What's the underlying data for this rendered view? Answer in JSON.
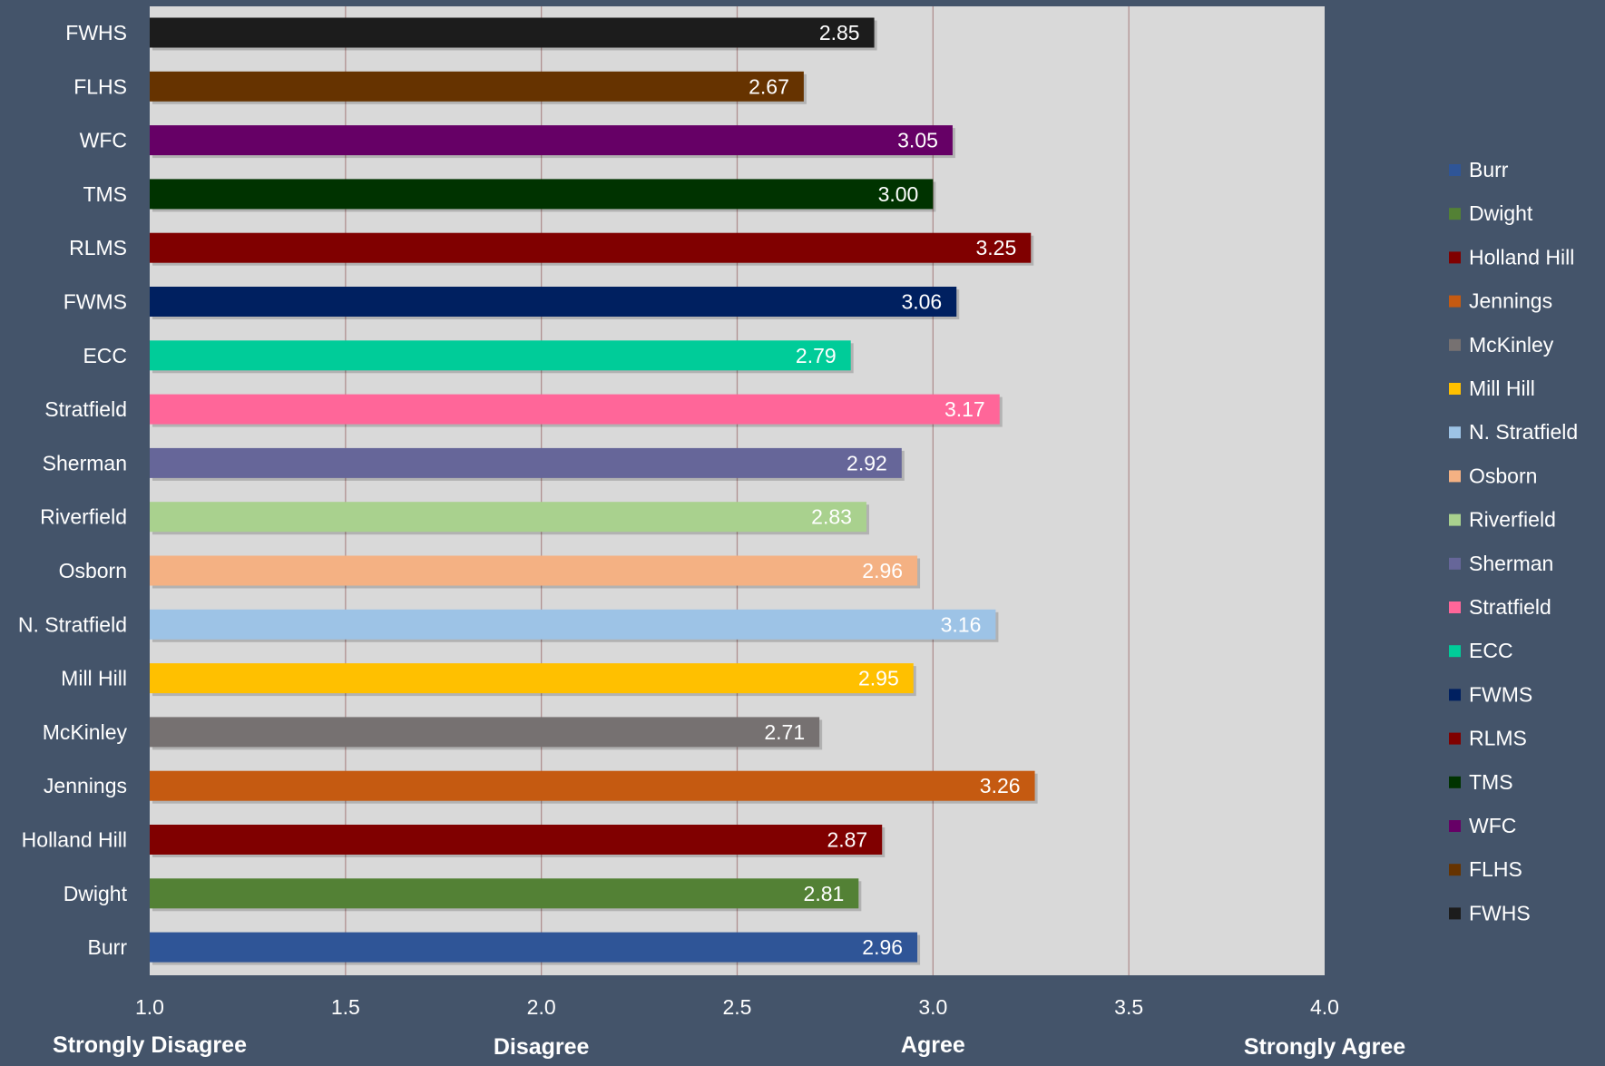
{
  "chart_data": {
    "type": "bar",
    "orientation": "horizontal",
    "categories": [
      "FWHS",
      "FLHS",
      "WFC",
      "TMS",
      "RLMS",
      "FWMS",
      "ECC",
      "Stratfield",
      "Sherman",
      "Riverfield",
      "Osborn",
      "N. Stratfield",
      "Mill Hill",
      "McKinley",
      "Jennings",
      "Holland Hill",
      "Dwight",
      "Burr"
    ],
    "values": [
      2.85,
      2.67,
      3.05,
      3.0,
      3.25,
      3.06,
      2.79,
      3.17,
      2.92,
      2.83,
      2.96,
      3.16,
      2.95,
      2.71,
      3.26,
      2.87,
      2.81,
      2.96
    ],
    "value_labels": [
      "2.85",
      "2.67",
      "3.05",
      "3.00",
      "3.25",
      "3.06",
      "2.79",
      "3.17",
      "2.92",
      "2.83",
      "2.96",
      "3.16",
      "2.95",
      "2.71",
      "3.26",
      "2.87",
      "2.81",
      "2.96"
    ],
    "colors": [
      "#1c1c1c",
      "#663300",
      "#660066",
      "#003300",
      "#800000",
      "#002060",
      "#00cc99",
      "#ff6699",
      "#666699",
      "#a9d18e",
      "#f4b183",
      "#9dc3e6",
      "#ffc000",
      "#767171",
      "#c55a11",
      "#800000",
      "#538135",
      "#2f5597"
    ],
    "xlim": [
      1.0,
      4.0
    ],
    "xticks": [
      1.0,
      1.5,
      2.0,
      2.5,
      3.0,
      3.5,
      4.0
    ],
    "xtick_labels": [
      "1.0",
      "1.5",
      "2.0",
      "2.5",
      "3.0",
      "3.5",
      "4.0"
    ],
    "scale_labels": [
      "Strongly Disagree",
      "Disagree",
      "Agree",
      "Strongly Agree"
    ],
    "grid": true,
    "title": "",
    "xlabel": "",
    "ylabel": "",
    "legend": {
      "position": "right",
      "entries": [
        {
          "label": "Burr",
          "color": "#2f5597"
        },
        {
          "label": "Dwight",
          "color": "#538135"
        },
        {
          "label": "Holland Hill",
          "color": "#800000"
        },
        {
          "label": "Jennings",
          "color": "#c55a11"
        },
        {
          "label": "McKinley",
          "color": "#767171"
        },
        {
          "label": "Mill Hill",
          "color": "#ffc000"
        },
        {
          "label": "N. Stratfield",
          "color": "#9dc3e6"
        },
        {
          "label": "Osborn",
          "color": "#f4b183"
        },
        {
          "label": "Riverfield",
          "color": "#a9d18e"
        },
        {
          "label": "Sherman",
          "color": "#666699"
        },
        {
          "label": "Stratfield",
          "color": "#ff6699"
        },
        {
          "label": "ECC",
          "color": "#00cc99"
        },
        {
          "label": "FWMS",
          "color": "#002060"
        },
        {
          "label": "RLMS",
          "color": "#800000"
        },
        {
          "label": "TMS",
          "color": "#003300"
        },
        {
          "label": "WFC",
          "color": "#660066"
        },
        {
          "label": "FLHS",
          "color": "#663300"
        },
        {
          "label": "FWHS",
          "color": "#1c1c1c"
        }
      ]
    }
  }
}
